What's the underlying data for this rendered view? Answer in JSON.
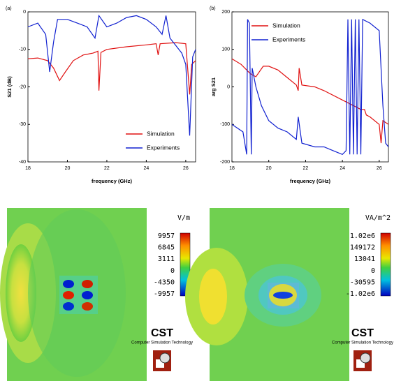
{
  "chart_data": [
    {
      "type": "line",
      "panel": "(a)",
      "xlabel": "frequency (GHz)",
      "ylabel": "S21 (dB)",
      "xlim": [
        18,
        26.5
      ],
      "ylim": [
        -40,
        0
      ],
      "xticks": [
        18,
        20,
        22,
        24,
        26
      ],
      "yticks": [
        -40,
        -30,
        -20,
        -10,
        0
      ],
      "legend": "lower right",
      "series": [
        {
          "name": "Simulation",
          "color": "#e01010",
          "x": [
            18,
            18.5,
            19,
            19.3,
            19.6,
            19.9,
            20.3,
            20.8,
            21.3,
            21.55,
            21.6,
            21.7,
            22,
            23,
            24,
            24.5,
            24.6,
            24.7,
            25.5,
            26,
            26.2,
            26.3,
            26.5
          ],
          "values": [
            -12.5,
            -12.3,
            -13,
            -15,
            -18.3,
            -16,
            -13,
            -11.5,
            -11,
            -10.5,
            -21,
            -10.8,
            -10,
            -9.3,
            -8.8,
            -8.5,
            -11.5,
            -8.5,
            -8.2,
            -8.5,
            -22,
            -14,
            -13
          ]
        },
        {
          "name": "Experiments",
          "color": "#1020d0",
          "x": [
            18,
            18.5,
            18.9,
            19.1,
            19.3,
            19.5,
            20,
            20.5,
            21,
            21.4,
            21.6,
            22,
            22.5,
            23,
            23.5,
            24,
            24.5,
            24.8,
            25,
            25.2,
            25.5,
            25.8,
            26,
            26.2,
            26.35,
            26.5
          ],
          "values": [
            -4,
            -3,
            -6,
            -16,
            -8,
            -2,
            -2,
            -3,
            -4,
            -7,
            -1,
            -4,
            -3,
            -1.5,
            -1,
            -2,
            -4,
            -6,
            -1,
            -7,
            -9,
            -11,
            -14,
            -33,
            -12,
            -10
          ]
        }
      ]
    },
    {
      "type": "line",
      "panel": "(b)",
      "xlabel": "frequency (GHz)",
      "ylabel": "arg S21",
      "xlim": [
        18,
        26.5
      ],
      "ylim": [
        -200,
        200
      ],
      "xticks": [
        18,
        20,
        22,
        24,
        26
      ],
      "yticks": [
        -200,
        -100,
        0,
        100,
        200
      ],
      "legend": "upper center",
      "series": [
        {
          "name": "Simulation",
          "color": "#e01010",
          "x": [
            18,
            18.5,
            19,
            19.3,
            19.7,
            20,
            20.5,
            21,
            21.5,
            21.6,
            21.65,
            21.8,
            22.5,
            23,
            24,
            25,
            25.2,
            25.3,
            25.5,
            26,
            26.1,
            26.2,
            26.5
          ],
          "values": [
            75,
            60,
            35,
            27,
            55,
            55,
            45,
            25,
            5,
            -10,
            50,
            5,
            0,
            -10,
            -35,
            -60,
            -60,
            -75,
            -80,
            -100,
            -150,
            -90,
            -100
          ]
        },
        {
          "name": "Experiments",
          "color": "#1020d0",
          "x": [
            18,
            18.6,
            18.8,
            18.85,
            18.95,
            19.05,
            19.1,
            19.3,
            19.6,
            20,
            20.5,
            21,
            21.5,
            21.6,
            21.8,
            22.5,
            23,
            23.5,
            24,
            24.2,
            24.3,
            24.4,
            24.5,
            24.6,
            24.7,
            24.8,
            24.9,
            25,
            25.1,
            25.5,
            26,
            26.2,
            26.35,
            26.5
          ],
          "values": [
            -100,
            -120,
            -180,
            180,
            170,
            -180,
            50,
            0,
            -50,
            -90,
            -110,
            -120,
            -140,
            -80,
            -150,
            -160,
            -160,
            -170,
            -180,
            -170,
            180,
            -180,
            180,
            -180,
            180,
            -180,
            180,
            -180,
            180,
            170,
            150,
            -50,
            -150,
            -160
          ]
        }
      ]
    }
  ],
  "field_maps": [
    {
      "unit": "V/m",
      "colorbar_ticks": [
        "9957",
        "6845",
        "3111",
        "0",
        "-4350",
        "-9957"
      ],
      "logo": "CST",
      "logo_sub": "Computer Simulation Technology"
    },
    {
      "unit": "VA/m^2",
      "colorbar_ticks": [
        "1.02e6",
        "149172",
        "13041",
        "0",
        "-30595",
        "-1.02e6"
      ],
      "logo": "CST",
      "logo_sub": "Computer Simulation Technology"
    }
  ]
}
